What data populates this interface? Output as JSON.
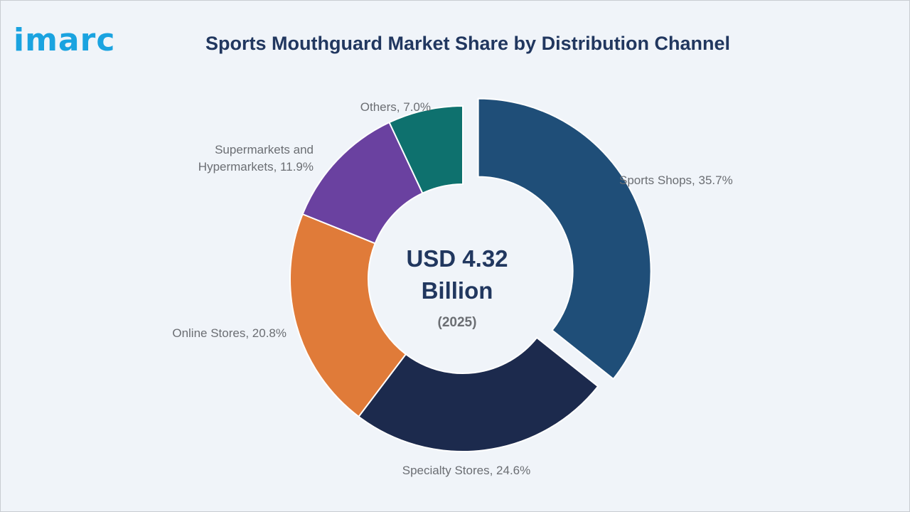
{
  "brand": {
    "logo_text": "imarc",
    "color": "#1aa3e0"
  },
  "title": "Sports Mouthguard Market Share by Distribution Channel",
  "chart_data": {
    "type": "pie",
    "donut": true,
    "exploded_slice": "Sports Shops",
    "center": {
      "value_line1": "USD 4.32",
      "value_line2": "Billion",
      "year": "(2025)"
    },
    "categories": [
      "Sports Shops",
      "Specialty Stores",
      "Online Stores",
      "Supermarkets and Hypermarkets",
      "Others"
    ],
    "values": [
      35.7,
      24.6,
      20.8,
      11.9,
      7.0
    ],
    "colors": [
      "#1f4e78",
      "#1c2a4d",
      "#e07b39",
      "#6a41a0",
      "#0e716e"
    ],
    "labels": [
      [
        "Sports Shops, 35.7%"
      ],
      [
        "Specialty Stores, 24.6%"
      ],
      [
        "Online Stores, 20.8%"
      ],
      [
        "Supermarkets and",
        "Hypermarkets, 11.9%"
      ],
      [
        "Others, 7.0%"
      ]
    ]
  }
}
